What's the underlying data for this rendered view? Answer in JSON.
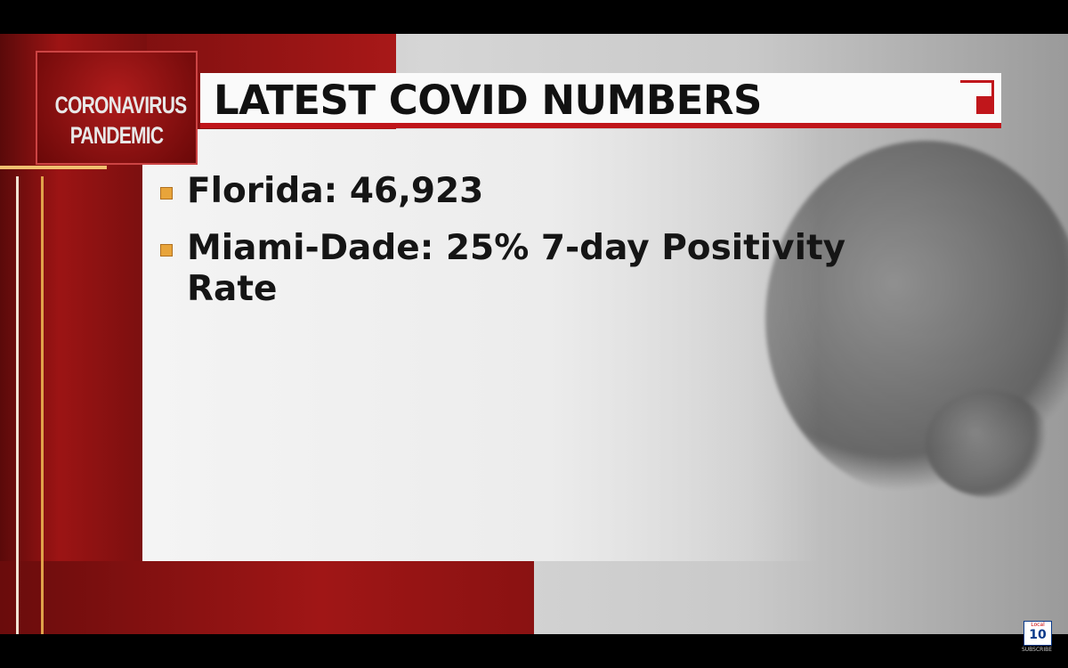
{
  "badge": {
    "line1": "CORONAVIRUS",
    "line2": "PANDEMIC"
  },
  "header": {
    "title": "LATEST COVID NUMBERS"
  },
  "bullets": [
    "Florida: 46,923",
    "Miami-Dade: 25% 7-day Positivity Rate"
  ],
  "watermark": {
    "brand": "Local",
    "number": "10",
    "action": "SUBSCRIBE"
  }
}
